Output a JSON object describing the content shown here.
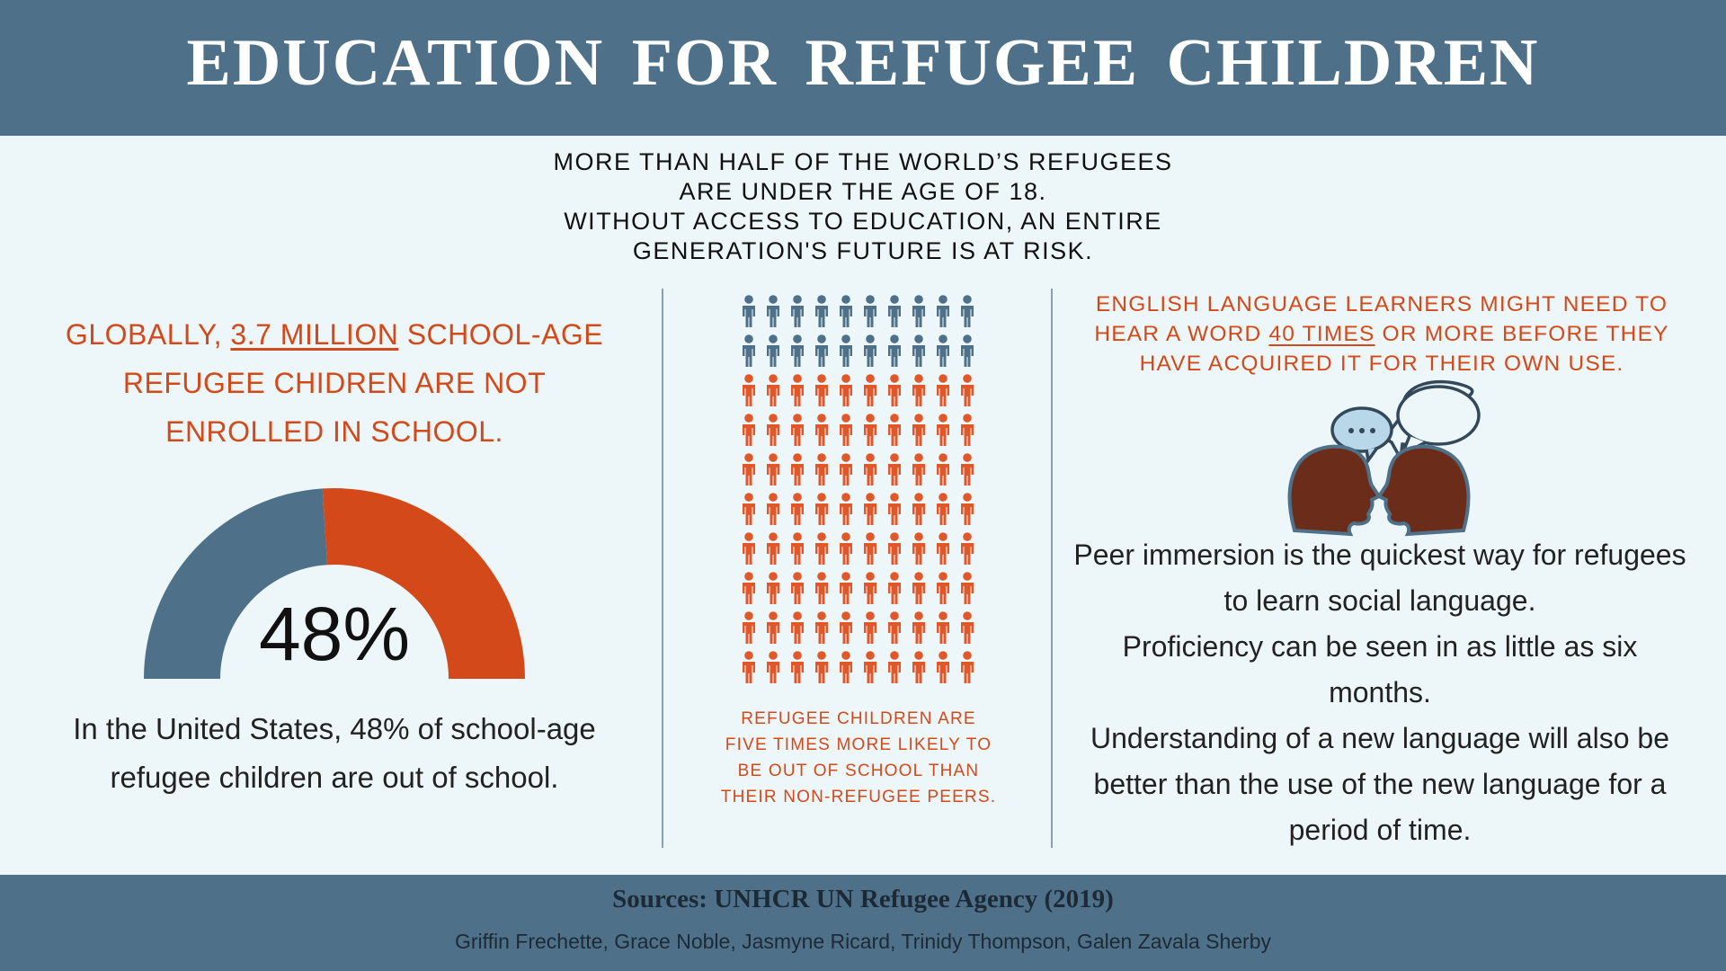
{
  "header": {
    "title": "EDUCATION FOR REFUGEE CHILDREN"
  },
  "intro": [
    "MORE THAN HALF OF THE WORLD’S REFUGEES",
    "ARE UNDER THE AGE OF 18.",
    "WITHOUT ACCESS TO EDUCATION, AN ENTIRE",
    "GENERATION'S FUTURE IS AT RISK."
  ],
  "left": {
    "heading": [
      "GLOBALLY, ",
      "3.7 MILLION",
      " SCHOOL-AGE REFUGEE CHIDREN ARE NOT ENROLLED IN SCHOOL."
    ],
    "gauge": {
      "value": 48,
      "label": "48%",
      "colors": [
        "#4e7189",
        "#d4491a"
      ]
    },
    "text": "In the United States, 48% of school-age refugee children are out of school."
  },
  "middle": {
    "pictogram": {
      "columns": 10,
      "groups": [
        {
          "color": "#4e7189",
          "count": 20
        },
        {
          "color": "#e0582a",
          "count": 80
        }
      ]
    },
    "caption": "REFUGEE CHILDREN ARE FIVE TIMES MORE LIKELY TO BE OUT OF SCHOOL THAN THEIR NON-REFUGEE PEERS."
  },
  "right": {
    "heading": [
      "ENGLISH LANGUAGE LEARNERS MIGHT NEED TO HEAR A WORD ",
      "40 TIMES",
      " OR MORE BEFORE THEY HAVE ACQUIRED IT FOR THEIR OWN USE."
    ],
    "paragraphs": [
      "Peer immersion is the quickest way for refugees to learn social language.",
      "Proficiency can be seen in as little as six months.",
      "Understanding of a new language will also be better than the use of the new language for a period of time."
    ]
  },
  "footer": {
    "sources": "Sources: UNHCR UN  Refugee Agency (2019)",
    "authors": "Griffin Frechette, Grace Noble, Jasmyne Ricard, Trinidy Thompson, Galen Zavala Sherby"
  }
}
